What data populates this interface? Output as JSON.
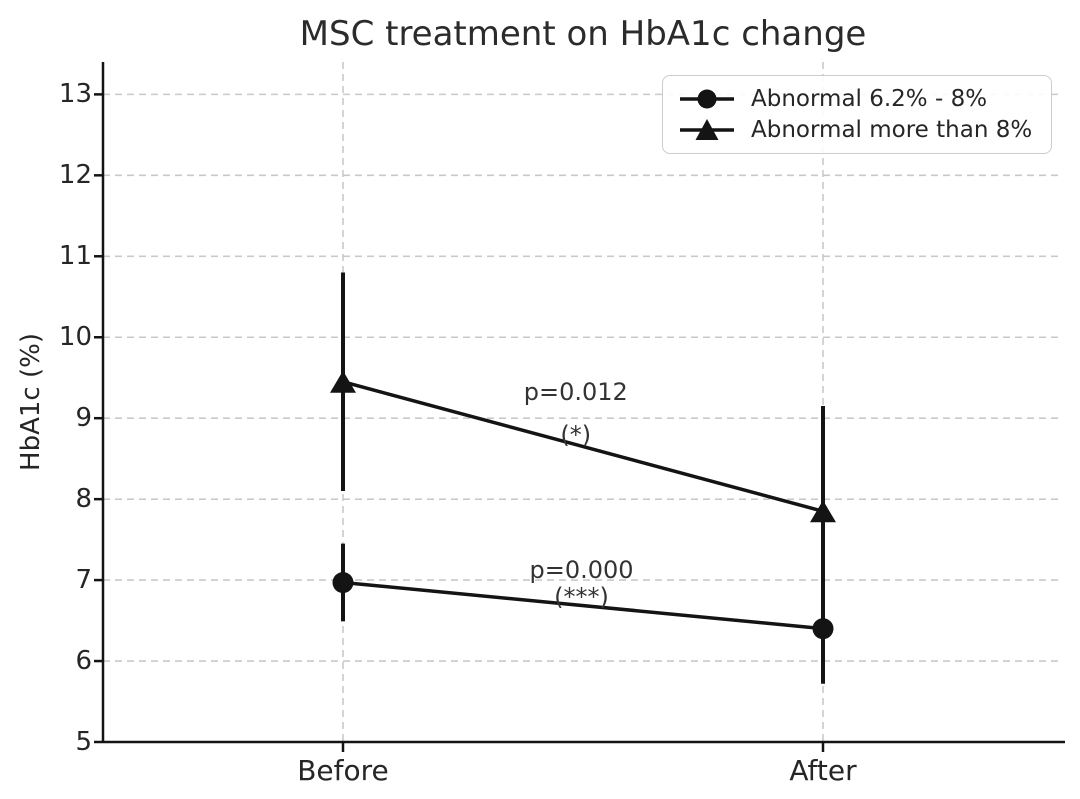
{
  "figure": {
    "title": "MSC treatment on HbA1c change"
  },
  "chart_data": {
    "type": "line",
    "title": "MSC treatment on HbA1c change",
    "xlabel": "",
    "ylabel": "HbA1c (%)",
    "categories": [
      "Before",
      "After"
    ],
    "yticks": [
      5,
      6,
      7,
      8,
      9,
      10,
      11,
      12,
      13
    ],
    "ylim": [
      5,
      13.4
    ],
    "grid": {
      "show": true,
      "style": "dashed",
      "axes": "both",
      "color": "#c9c9c9"
    },
    "legend_position": "upper right",
    "line_color": "#141414",
    "series": [
      {
        "name": "Abnormal 6.2% - 8%",
        "marker": "circle",
        "values": [
          6.97,
          6.4
        ],
        "yerr": [
          0.48,
          0.68
        ]
      },
      {
        "name": "Abnormal more than 8%",
        "marker": "triangle",
        "values": [
          9.45,
          7.85
        ],
        "yerr": [
          1.35,
          1.3
        ]
      }
    ],
    "annotations": [
      {
        "text": "p=0.012",
        "sub": "(*)",
        "x_frac": 0.485,
        "y_text": 9.32,
        "y_sub": 8.79
      },
      {
        "text": "p=0.000",
        "sub": "(***)",
        "x_frac": 0.497,
        "y_text": 7.12,
        "y_sub": 6.79
      }
    ]
  }
}
